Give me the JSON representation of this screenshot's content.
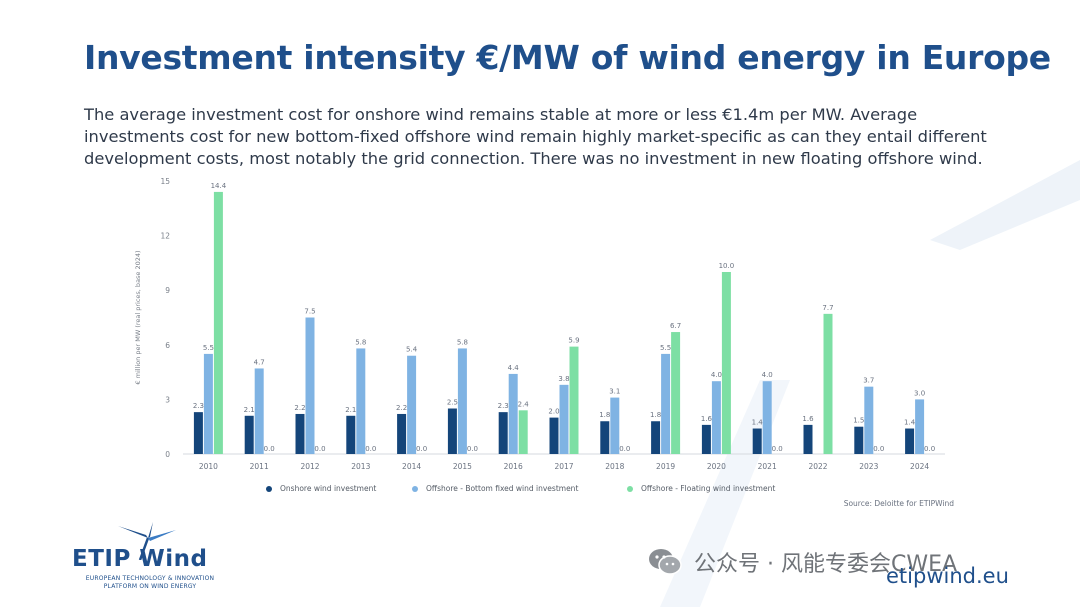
{
  "slide": {
    "title": "Investment intensity €/MW of wind energy in Europe",
    "subtitle": "The average investment cost for onshore wind remains stable at more or less €1.4m per MW. Average investments cost for new  bottom-fixed offshore wind remain highly market-specific as can they entail different development costs, most notably the grid connection. There was no investment in new floating offshore wind.",
    "source": "Source: Deloitte for ETIPWind",
    "logo_text": "ETIP Wind",
    "logo_sub_line1": "EUROPEAN TECHNOLOGY & INNOVATION",
    "logo_sub_line2": "PLATFORM ON WIND ENERGY",
    "watermark": "公众号 · 风能专委会CWEA",
    "website": "etipwind.eu"
  },
  "colors": {
    "onshore": "#14457a",
    "bottom_fixed": "#7fb3e3",
    "floating": "#7ddfa4",
    "title": "#1f4f8b"
  },
  "chart_data": {
    "type": "bar",
    "ylabel": "€ million per MW (real prices, base 2024)",
    "ylim": [
      0,
      15
    ],
    "yticks": [
      0,
      3,
      6,
      9,
      12,
      15
    ],
    "categories": [
      "2010",
      "2011",
      "2012",
      "2013",
      "2014",
      "2015",
      "2016",
      "2017",
      "2018",
      "2019",
      "2020",
      "2021",
      "2022",
      "2023",
      "2024"
    ],
    "series": [
      {
        "name": "Onshore wind investment",
        "color_key": "onshore",
        "values": [
          2.3,
          2.1,
          2.2,
          2.1,
          2.2,
          2.5,
          2.3,
          2.0,
          1.8,
          1.8,
          1.6,
          1.4,
          1.6,
          1.5,
          1.4
        ]
      },
      {
        "name": "Offshore - Bottom fixed wind investment",
        "color_key": "bottom_fixed",
        "values": [
          5.5,
          4.7,
          7.5,
          5.8,
          5.4,
          5.8,
          4.4,
          3.8,
          3.1,
          5.5,
          4.0,
          4.0,
          null,
          3.7,
          3.0
        ]
      },
      {
        "name": "Offshore - Floating wind investment",
        "color_key": "floating",
        "values": [
          14.4,
          0.0,
          0.0,
          0.0,
          0.0,
          0.0,
          2.4,
          5.9,
          0.0,
          6.7,
          10.0,
          0.0,
          7.7,
          0.0,
          0.0
        ]
      }
    ]
  }
}
